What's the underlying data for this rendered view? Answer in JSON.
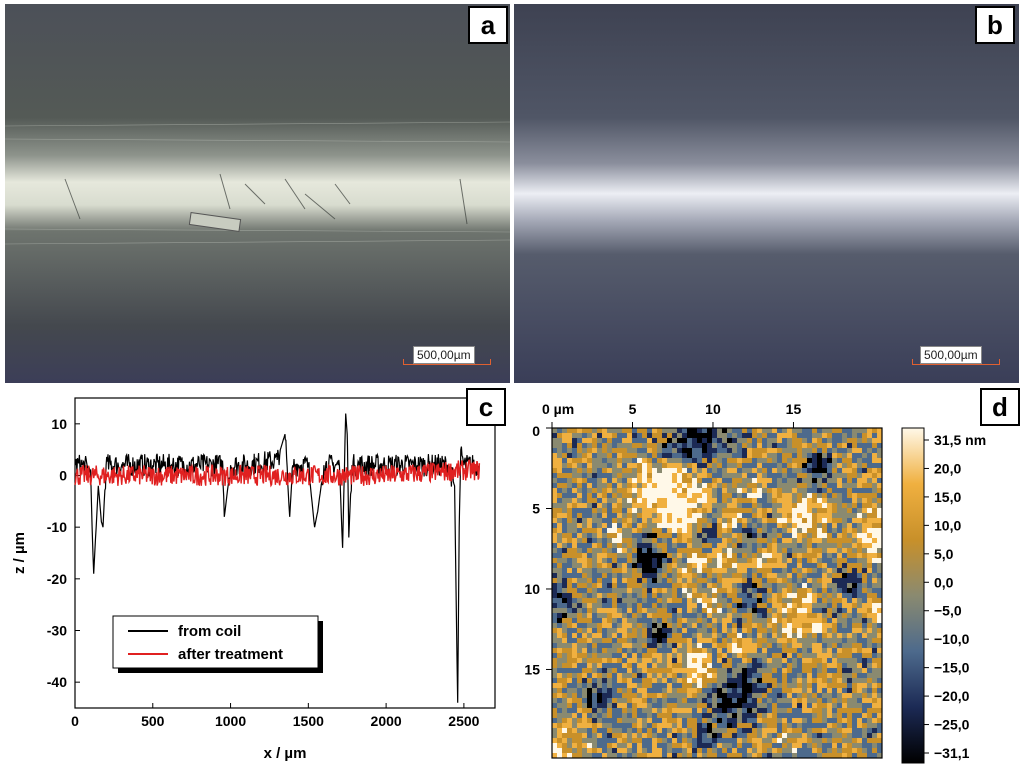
{
  "panels": {
    "a": {
      "label": "a",
      "scale_text": "500,00µm"
    },
    "b": {
      "label": "b",
      "scale_text": "500,00µm"
    },
    "c": {
      "label": "c"
    },
    "d": {
      "label": "d"
    }
  },
  "chart_data": [
    {
      "type": "line",
      "xlabel": "x / µm",
      "ylabel": "z / µm",
      "xlim": [
        0,
        2700
      ],
      "ylim": [
        -45,
        15
      ],
      "xticks": [
        0,
        500,
        1000,
        1500,
        2000,
        2500
      ],
      "yticks": [
        10,
        0,
        -10,
        -20,
        -30,
        -40
      ],
      "legend_position": "lower-left",
      "series": [
        {
          "name": "from coil",
          "color": "#000000",
          "x": [
            0,
            50,
            100,
            110,
            120,
            150,
            170,
            180,
            200,
            300,
            500,
            800,
            950,
            960,
            1000,
            1100,
            1300,
            1350,
            1380,
            1400,
            1500,
            1540,
            1560,
            1600,
            1700,
            1720,
            1740,
            1750,
            1760,
            1780,
            1800,
            2000,
            2200,
            2400,
            2440,
            2460,
            2470,
            2480,
            2500,
            2600
          ],
          "y": [
            2,
            2,
            1,
            -10,
            -19,
            -2,
            -9,
            -10,
            2,
            2,
            2,
            2,
            2,
            -8,
            2,
            2,
            3,
            8,
            -8,
            2,
            2,
            -10,
            -7,
            2,
            2,
            -14,
            12,
            8,
            -12,
            2,
            2,
            2,
            2,
            2,
            -2,
            -44,
            -10,
            5,
            2,
            2
          ]
        },
        {
          "name": "after treatment",
          "color": "#e02020",
          "x": [
            0,
            500,
            1000,
            1500,
            2000,
            2500,
            2600
          ],
          "y": [
            0,
            0,
            0,
            0,
            0,
            1,
            1
          ]
        }
      ]
    },
    {
      "type": "heatmap",
      "xticks": [
        "0 µm",
        "5",
        "10",
        "15"
      ],
      "yticks": [
        "0",
        "5",
        "10",
        "15"
      ],
      "colorbar_labels": [
        "31,5 nm",
        "20,0",
        "15,0",
        "10,0",
        "5,0",
        "0,0",
        "−5,0",
        "−10,0",
        "−15,0",
        "−20,0",
        "−25,0",
        "−31,1"
      ],
      "colorbar_range": [
        -31.1,
        31.5
      ],
      "colors": [
        "#000000",
        "#1c2a55",
        "#4d6a8c",
        "#8a8a70",
        "#c8902a",
        "#f0b040",
        "#fff8e8"
      ]
    }
  ]
}
